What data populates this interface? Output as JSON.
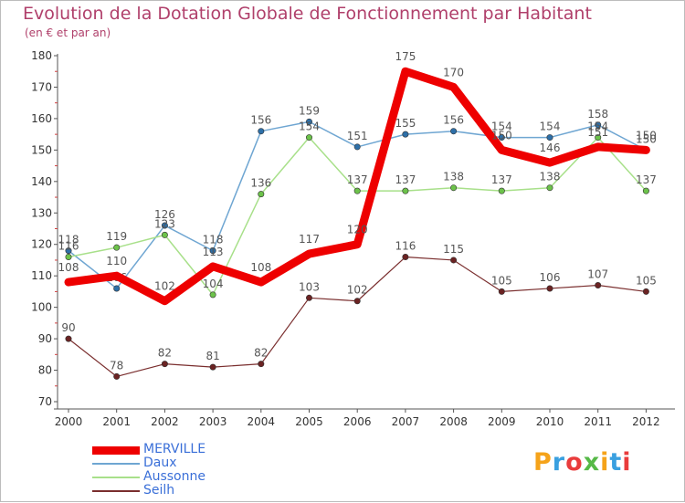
{
  "chart_data": {
    "type": "line",
    "title": "Evolution de la Dotation Globale de Fonctionnement par Habitant",
    "subtitle": "(en € et par an)",
    "categories": [
      "2000",
      "2001",
      "2002",
      "2003",
      "2004",
      "2005",
      "2006",
      "2007",
      "2008",
      "2009",
      "2010",
      "2011",
      "2012"
    ],
    "ylim": [
      70,
      180
    ],
    "yticks": [
      70,
      80,
      90,
      100,
      110,
      120,
      130,
      140,
      150,
      160,
      170,
      180
    ],
    "grid": false,
    "legend_position": "bottom-left",
    "series": [
      {
        "name": "Daux",
        "color": "#6fa6d2",
        "marker": "#2d6fa8",
        "width": 1.5,
        "values": [
          118,
          106,
          126,
          118,
          156,
          159,
          151,
          155,
          156,
          154,
          154,
          158,
          150
        ],
        "labels": [
          "118",
          "106",
          "126",
          "118",
          "156",
          "159",
          "151",
          "155",
          "156",
          "154",
          "154",
          "158",
          "150"
        ]
      },
      {
        "name": "Aussonne",
        "color": "#a8e08a",
        "marker": "#6cc24a",
        "width": 1.5,
        "values": [
          116,
          119,
          123,
          104,
          136,
          154,
          137,
          137,
          138,
          137,
          138,
          154,
          137
        ],
        "labels": [
          "116",
          "119",
          "123",
          "104",
          "136",
          "154",
          "137",
          "137",
          "138",
          "137",
          "138",
          "154",
          "137"
        ]
      },
      {
        "name": "Seilh",
        "color": "#7a2e2e",
        "marker": "#6b2323",
        "width": 1.2,
        "values": [
          90,
          78,
          82,
          81,
          82,
          103,
          102,
          116,
          115,
          105,
          106,
          107,
          105
        ],
        "labels": [
          "90",
          "78",
          "82",
          "81",
          "82",
          "103",
          "102",
          "116",
          "115",
          "105",
          "106",
          "107",
          "105"
        ]
      },
      {
        "name": "MERVILLE",
        "color": "#ee0000",
        "marker": "#ee0000",
        "width": 9,
        "values": [
          108,
          110,
          102,
          113,
          108,
          117,
          120,
          175,
          170,
          150,
          146,
          151,
          150
        ],
        "labels": [
          "108",
          "110",
          "102",
          "113",
          "108",
          "117",
          "120",
          "175",
          "170",
          "150",
          "146",
          "151",
          "150"
        ]
      }
    ]
  },
  "legend": {
    "items": [
      {
        "name": "MERVILLE",
        "color": "#ee0000",
        "text_color": "#3a6fd8",
        "thickness": 9
      },
      {
        "name": "Daux",
        "color": "#6fa6d2",
        "text_color": "#3a6fd8",
        "thickness": 2
      },
      {
        "name": "Aussonne",
        "color": "#a8e08a",
        "text_color": "#3a6fd8",
        "thickness": 2
      },
      {
        "name": "Seilh",
        "color": "#7a2e2e",
        "text_color": "#3a6fd8",
        "thickness": 2
      }
    ]
  },
  "brand": {
    "letters": [
      "P",
      "r",
      "o",
      "x",
      "i",
      "t",
      "i"
    ],
    "colors": [
      "#f5a31a",
      "#3aa0e0",
      "#e93c3c",
      "#56b947",
      "#f5a31a",
      "#3aa0e0",
      "#e93c3c"
    ]
  }
}
